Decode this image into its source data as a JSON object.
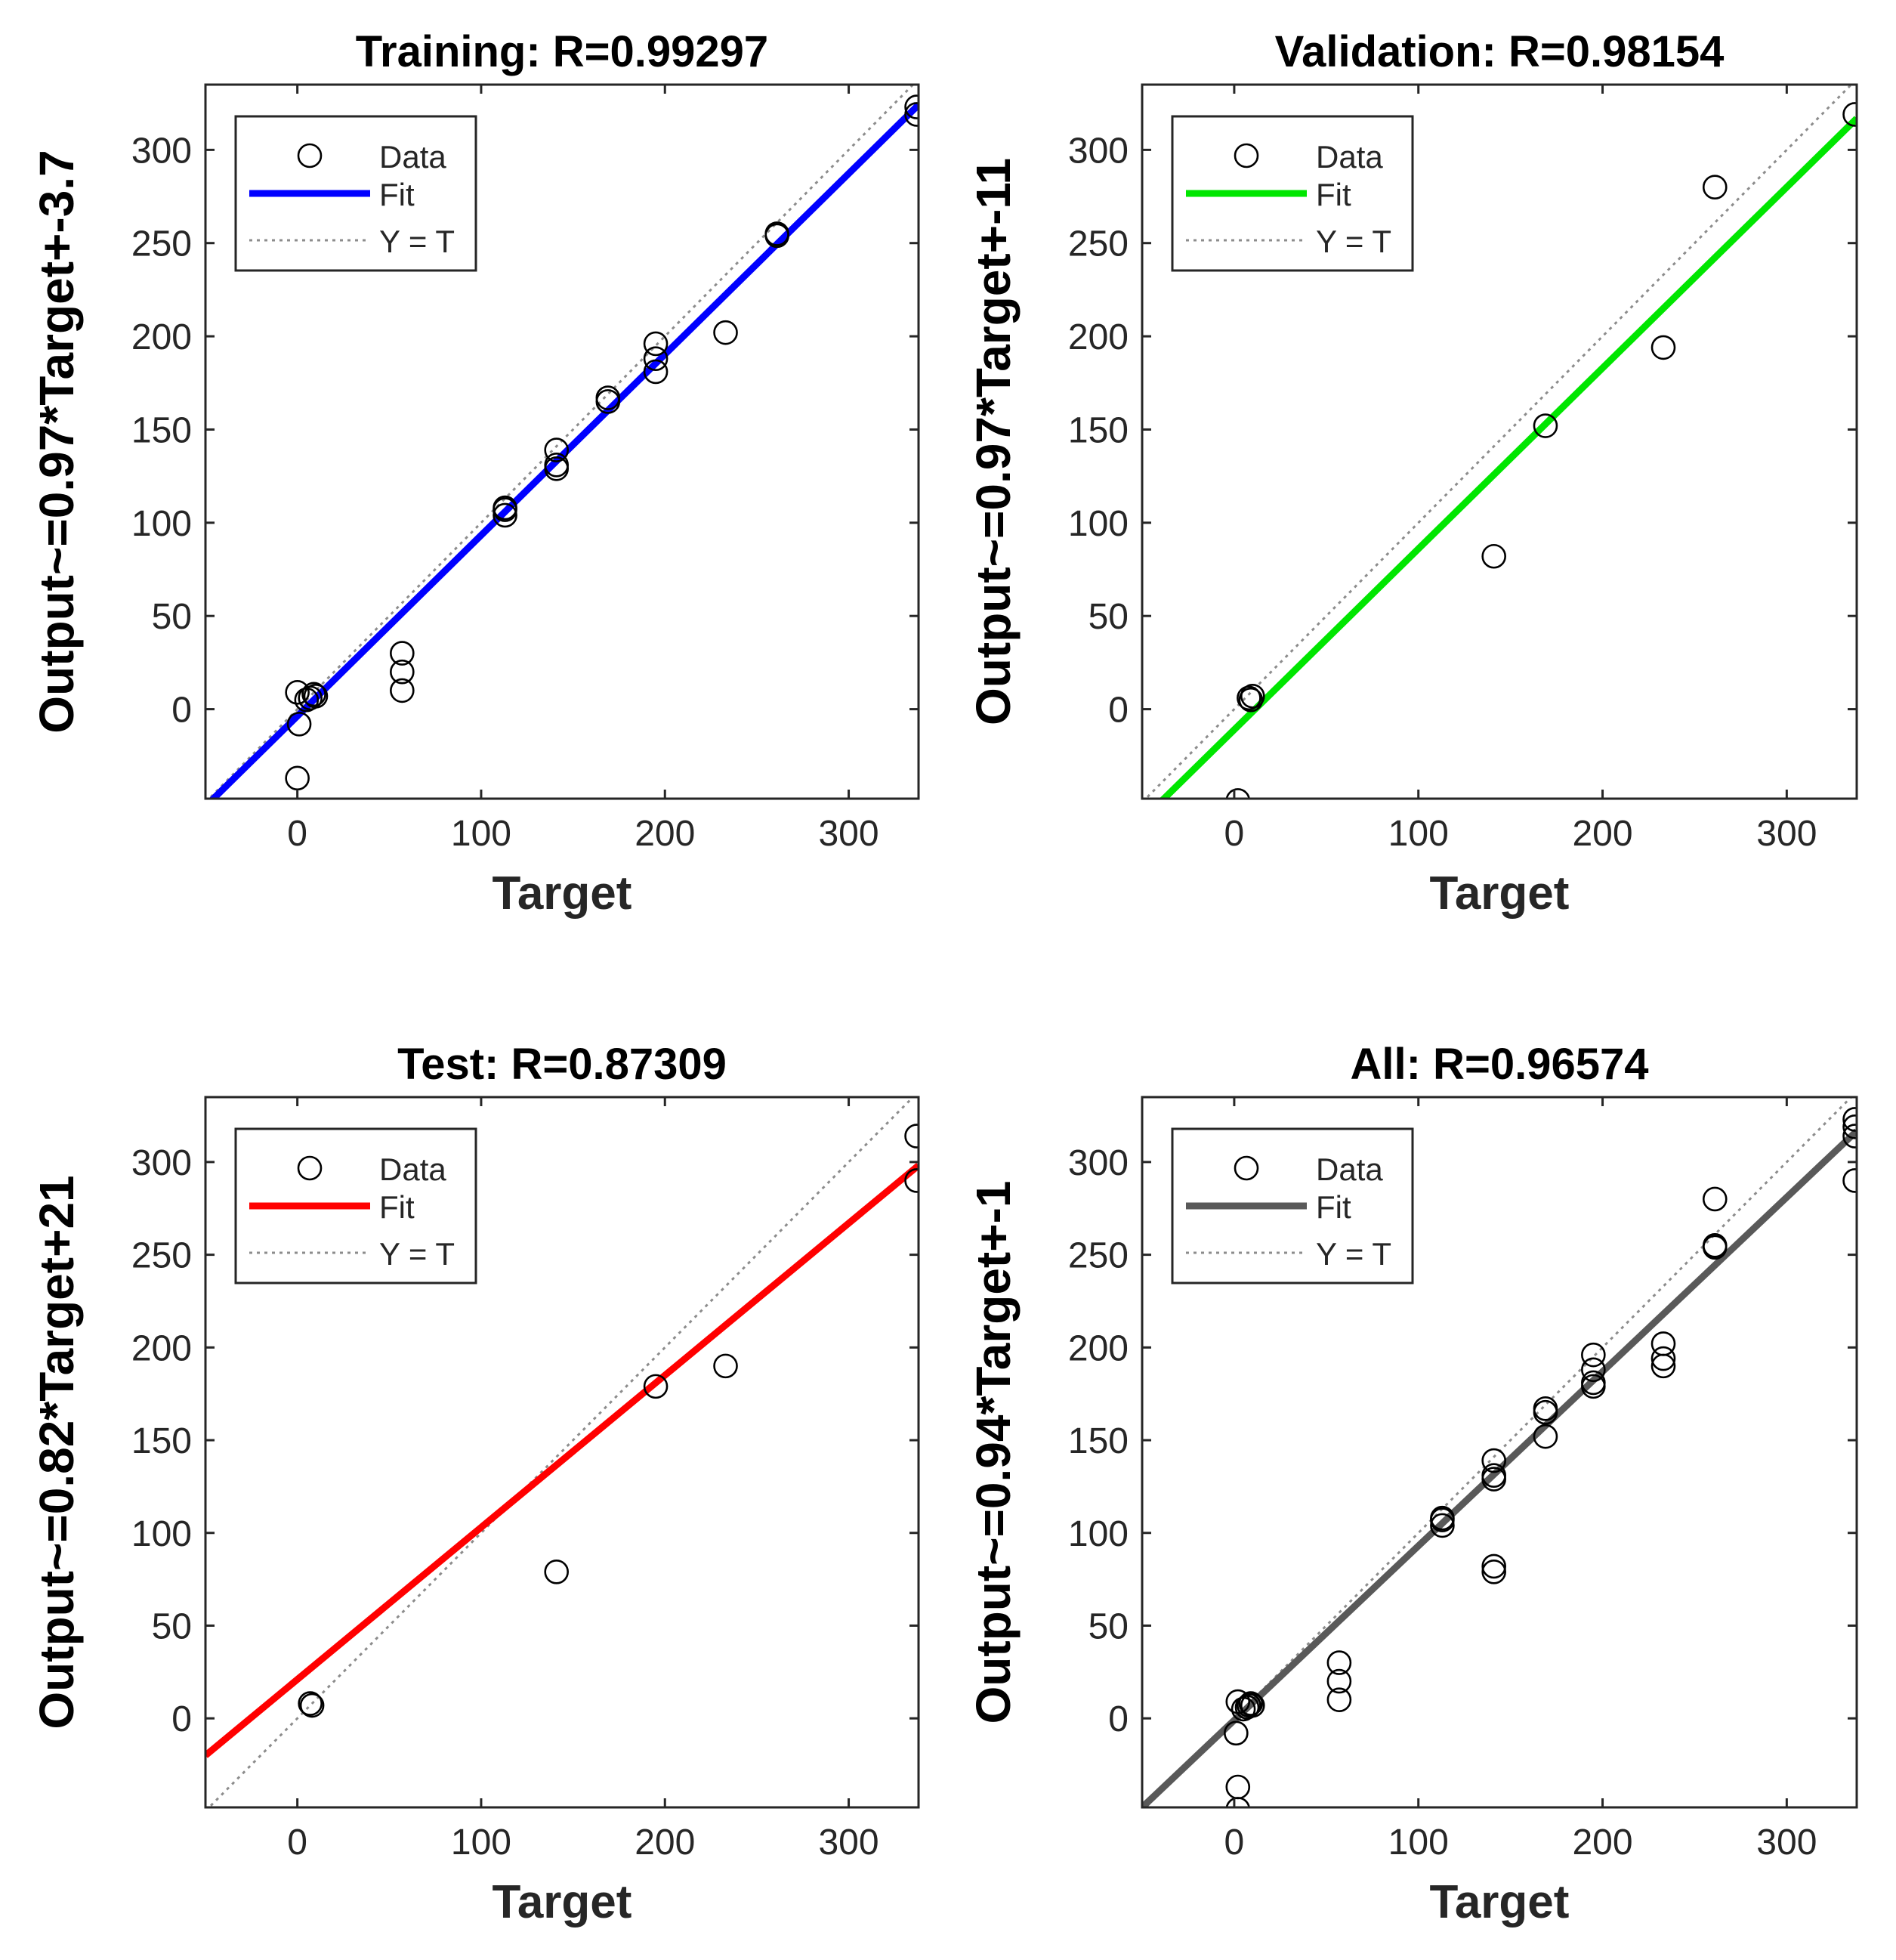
{
  "chart_data": [
    {
      "type": "scatter",
      "title": "Training: R=0.99297",
      "xlabel": "Target",
      "ylabel": "Output~=0.97*Target+-3.7",
      "xlim": [
        -50,
        338
      ],
      "ylim": [
        -48,
        335
      ],
      "xticks": [
        0,
        100,
        200,
        300
      ],
      "yticks": [
        0,
        50,
        100,
        150,
        200,
        250,
        300
      ],
      "fit": {
        "slope": 0.97,
        "intercept": -3.7,
        "color": "#0000ff",
        "label": "Fit"
      },
      "identity_label": "Y = T",
      "data_label": "Data",
      "points": [
        [
          0,
          9
        ],
        [
          1,
          -8
        ],
        [
          0,
          -37
        ],
        [
          7,
          6
        ],
        [
          9,
          8
        ],
        [
          5,
          5
        ],
        [
          10,
          7
        ],
        [
          57,
          30
        ],
        [
          57,
          20
        ],
        [
          57,
          10
        ],
        [
          113,
          108
        ],
        [
          113,
          107
        ],
        [
          113,
          104
        ],
        [
          141,
          139
        ],
        [
          141,
          131
        ],
        [
          141,
          129
        ],
        [
          169,
          167
        ],
        [
          169,
          165
        ],
        [
          195,
          196
        ],
        [
          195,
          188
        ],
        [
          195,
          181
        ],
        [
          233,
          202
        ],
        [
          261,
          255
        ],
        [
          261,
          254
        ],
        [
          337,
          323
        ],
        [
          337,
          319
        ]
      ]
    },
    {
      "type": "scatter",
      "title": "Validation: R=0.98154",
      "xlabel": "Target",
      "ylabel": "Output~=0.97*Target+-11",
      "xlim": [
        -50,
        338
      ],
      "ylim": [
        -48,
        335
      ],
      "xticks": [
        0,
        100,
        200,
        300
      ],
      "yticks": [
        0,
        50,
        100,
        150,
        200,
        250,
        300
      ],
      "fit": {
        "slope": 0.97,
        "intercept": -11,
        "color": "#00e600",
        "label": "Fit"
      },
      "identity_label": "Y = T",
      "data_label": "Data",
      "points": [
        [
          2,
          -49
        ],
        [
          8,
          6
        ],
        [
          10,
          7
        ],
        [
          9,
          5
        ],
        [
          141,
          82
        ],
        [
          169,
          152
        ],
        [
          233,
          194
        ],
        [
          261,
          280
        ],
        [
          337,
          319
        ]
      ]
    },
    {
      "type": "scatter",
      "title": "Test: R=0.87309",
      "xlabel": "Target",
      "ylabel": "Output~=0.82*Target+21",
      "xlim": [
        -50,
        338
      ],
      "ylim": [
        -48,
        335
      ],
      "xticks": [
        0,
        100,
        200,
        300
      ],
      "yticks": [
        0,
        50,
        100,
        150,
        200,
        250,
        300
      ],
      "fit": {
        "slope": 0.82,
        "intercept": 21,
        "color": "#ff0000",
        "label": "Fit"
      },
      "identity_label": "Y = T",
      "data_label": "Data",
      "points": [
        [
          7,
          8
        ],
        [
          8,
          7
        ],
        [
          141,
          79
        ],
        [
          195,
          179
        ],
        [
          233,
          190
        ],
        [
          337,
          314
        ],
        [
          337,
          290
        ]
      ]
    },
    {
      "type": "scatter",
      "title": "All: R=0.96574",
      "xlabel": "Target",
      "ylabel": "Output~=0.94*Target+-1",
      "xlim": [
        -50,
        338
      ],
      "ylim": [
        -48,
        335
      ],
      "xticks": [
        0,
        100,
        200,
        300
      ],
      "yticks": [
        0,
        50,
        100,
        150,
        200,
        250,
        300
      ],
      "fit": {
        "slope": 0.94,
        "intercept": -1,
        "color": "#595959",
        "label": "Fit"
      },
      "identity_label": "Y = T",
      "data_label": "Data",
      "points": [
        [
          2,
          9
        ],
        [
          1,
          -8
        ],
        [
          2,
          -37
        ],
        [
          2,
          -49
        ],
        [
          7,
          6
        ],
        [
          9,
          8
        ],
        [
          5,
          5
        ],
        [
          10,
          7
        ],
        [
          8,
          7
        ],
        [
          57,
          30
        ],
        [
          57,
          20
        ],
        [
          57,
          10
        ],
        [
          113,
          108
        ],
        [
          113,
          107
        ],
        [
          113,
          104
        ],
        [
          141,
          139
        ],
        [
          141,
          131
        ],
        [
          141,
          129
        ],
        [
          141,
          82
        ],
        [
          141,
          79
        ],
        [
          169,
          167
        ],
        [
          169,
          165
        ],
        [
          169,
          152
        ],
        [
          195,
          196
        ],
        [
          195,
          188
        ],
        [
          195,
          181
        ],
        [
          195,
          179
        ],
        [
          233,
          202
        ],
        [
          233,
          194
        ],
        [
          233,
          190
        ],
        [
          261,
          280
        ],
        [
          261,
          255
        ],
        [
          261,
          254
        ],
        [
          337,
          323
        ],
        [
          337,
          319
        ],
        [
          337,
          314
        ],
        [
          337,
          290
        ]
      ]
    }
  ]
}
